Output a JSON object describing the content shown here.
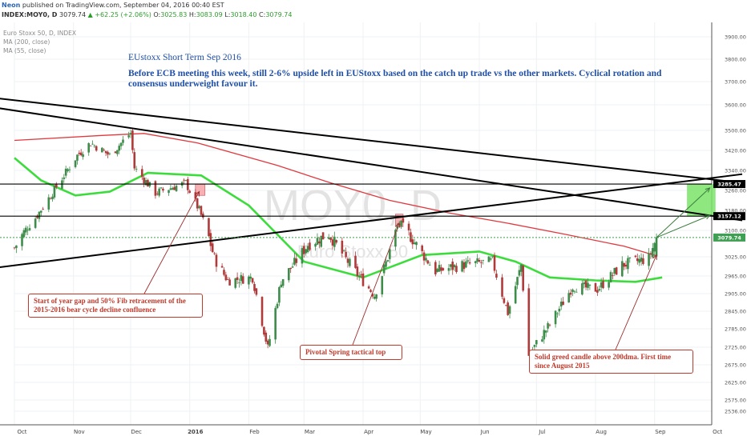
{
  "header": {
    "publisher": "Neon",
    "published_text": " published on TradingView.com, September 04, 2016 00:40 EST",
    "symbol": "INDEX:MOY0, D",
    "last": "3079.74",
    "change": "▲ +62.25 (+2.06%)",
    "o_label": "O:",
    "o_value": "3025.83",
    "h_label": "H:",
    "h_value": "3083.09",
    "l_label": "L:",
    "l_value": "3018.40",
    "c_label": "C:",
    "c_value": "3079.74"
  },
  "legend": {
    "instrument": "Euro Stoxx 50, D, INDEX",
    "ma200": "MA (200, close)",
    "ma55": "MA (55, close)"
  },
  "watermark": {
    "symbol": "MOY0, D",
    "name": "Euro Stoxx 50"
  },
  "annotations": {
    "title": "EUstoxx Short Term Sep 2016",
    "body": "Before ECB meeting this week, still 2-6% upside left in EUStoxx based on the catch up trade vs the other markets. Cyclical rotation and consensus underweight favour it.",
    "callout_gap": "Start of year gap and 50% Fib retracement of the 2015-2016 bear cycle decline confluence",
    "callout_pivot": "Pivotal Spring tactical top",
    "callout_candle": "Solid greed candle above 200dma. First time since August 2015"
  },
  "chart_data": {
    "type": "candlestick",
    "title": "Euro Stoxx 50, D, INDEX",
    "x_tick_labels": [
      "Oct",
      "Nov",
      "Dec",
      "2016",
      "Feb",
      "Mar",
      "Apr",
      "May",
      "Jun",
      "Jul",
      "Aug",
      "Sep",
      "Oct"
    ],
    "y_tick_labels": [
      "3900.00",
      "3800.00",
      "3700.00",
      "3600.00",
      "3500.00",
      "3420.00",
      "3340.00",
      "3260.00",
      "3180.00",
      "3100.00",
      "3025.00",
      "2965.00",
      "2905.00",
      "2845.00",
      "2785.00",
      "2725.00",
      "2675.00",
      "2625.00",
      "2575.00",
      "2536.00"
    ],
    "price_labels": [
      {
        "value": 3285.47,
        "text": "3285.47",
        "color": "#000000"
      },
      {
        "value": 3157.12,
        "text": "3157.12",
        "color": "#000000"
      },
      {
        "value": 3079.74,
        "text": "3079.74",
        "color": "#3f9f52"
      }
    ],
    "anchors": [
      {
        "date": "2015-10-01",
        "close": 3050
      },
      {
        "date": "2015-10-12",
        "close": 3150
      },
      {
        "date": "2015-10-20",
        "close": 3240
      },
      {
        "date": "2015-11-03",
        "close": 3400
      },
      {
        "date": "2015-11-10",
        "close": 3450
      },
      {
        "date": "2015-11-20",
        "close": 3400
      },
      {
        "date": "2015-12-01",
        "close": 3490
      },
      {
        "date": "2015-12-03",
        "close": 3350
      },
      {
        "date": "2015-12-14",
        "close": 3250
      },
      {
        "date": "2015-12-30",
        "close": 3290
      },
      {
        "date": "2016-01-06",
        "close": 3180
      },
      {
        "date": "2016-01-14",
        "close": 3020
      },
      {
        "date": "2016-01-21",
        "close": 2950
      },
      {
        "date": "2016-02-03",
        "close": 2960
      },
      {
        "date": "2016-02-11",
        "close": 2720
      },
      {
        "date": "2016-02-18",
        "close": 2950
      },
      {
        "date": "2016-03-03",
        "close": 3060
      },
      {
        "date": "2016-03-14",
        "close": 3090
      },
      {
        "date": "2016-03-24",
        "close": 3010
      },
      {
        "date": "2016-04-07",
        "close": 2900
      },
      {
        "date": "2016-04-20",
        "close": 3130
      },
      {
        "date": "2016-04-25",
        "close": 3090
      },
      {
        "date": "2016-05-09",
        "close": 2980
      },
      {
        "date": "2016-05-24",
        "close": 3000
      },
      {
        "date": "2016-06-08",
        "close": 3010
      },
      {
        "date": "2016-06-16",
        "close": 2840
      },
      {
        "date": "2016-06-23",
        "close": 3000
      },
      {
        "date": "2016-06-27",
        "close": 2700
      },
      {
        "date": "2016-07-08",
        "close": 2800
      },
      {
        "date": "2016-07-20",
        "close": 2930
      },
      {
        "date": "2016-08-02",
        "close": 2920
      },
      {
        "date": "2016-08-15",
        "close": 3000
      },
      {
        "date": "2016-08-29",
        "close": 3020
      },
      {
        "date": "2016-09-02",
        "close": 3079.74
      }
    ],
    "ma200_points": [
      {
        "date": "2015-10-01",
        "value": 3460
      },
      {
        "date": "2015-11-16",
        "value": 3480
      },
      {
        "date": "2015-12-08",
        "value": 3488
      },
      {
        "date": "2016-01-05",
        "value": 3450
      },
      {
        "date": "2016-02-16",
        "value": 3360
      },
      {
        "date": "2016-03-15",
        "value": 3290
      },
      {
        "date": "2016-04-15",
        "value": 3220
      },
      {
        "date": "2016-05-16",
        "value": 3170
      },
      {
        "date": "2016-06-15",
        "value": 3130
      },
      {
        "date": "2016-07-15",
        "value": 3090
      },
      {
        "date": "2016-08-16",
        "value": 3055
      },
      {
        "date": "2016-09-02",
        "value": 3028
      }
    ],
    "ma55_points": [
      {
        "date": "2015-10-01",
        "value": 3390
      },
      {
        "date": "2015-10-15",
        "value": 3300
      },
      {
        "date": "2015-11-02",
        "value": 3240
      },
      {
        "date": "2015-11-20",
        "value": 3255
      },
      {
        "date": "2015-12-10",
        "value": 3330
      },
      {
        "date": "2016-01-07",
        "value": 3320
      },
      {
        "date": "2016-02-01",
        "value": 3200
      },
      {
        "date": "2016-03-01",
        "value": 3010
      },
      {
        "date": "2016-04-01",
        "value": 2960
      },
      {
        "date": "2016-05-02",
        "value": 3030
      },
      {
        "date": "2016-06-01",
        "value": 3040
      },
      {
        "date": "2016-06-20",
        "value": 3010
      },
      {
        "date": "2016-07-08",
        "value": 2960
      },
      {
        "date": "2016-08-01",
        "value": 2950
      },
      {
        "date": "2016-08-22",
        "value": 2945
      },
      {
        "date": "2016-09-05",
        "value": 2960
      }
    ],
    "horizontal_lines": [
      3285.47,
      3157.12
    ],
    "trend_lines": [
      {
        "from": {
          "date": "2015-09-20",
          "value": 3630
        },
        "to": {
          "date": "2016-10-17",
          "value": 3290
        }
      },
      {
        "from": {
          "date": "2015-09-20",
          "value": 3590
        },
        "to": {
          "date": "2016-10-17",
          "value": 3140
        }
      },
      {
        "from": {
          "date": "2015-09-20",
          "value": 2990
        },
        "to": {
          "date": "2016-10-17",
          "value": 3325
        }
      }
    ],
    "zones": [
      {
        "from": {
          "date": "2016-01-04",
          "value": 3285
        },
        "to": {
          "date": "2016-01-09",
          "value": 3240
        },
        "color": "#f5a3a8"
      },
      {
        "from": {
          "date": "2016-04-18",
          "value": 3165
        },
        "to": {
          "date": "2016-04-22",
          "value": 3115
        },
        "color": "#f5a3a8"
      },
      {
        "from": {
          "date": "2016-09-18",
          "value": 3285.47
        },
        "to": {
          "date": "2016-10-03",
          "value": 3157.12
        },
        "color": "#7be36a"
      }
    ],
    "projection_arrows": [
      {
        "from": {
          "date": "2016-09-02",
          "value": 3079.74
        },
        "to": {
          "date": "2016-09-30",
          "value": 3270
        }
      },
      {
        "from": {
          "date": "2016-09-02",
          "value": 3079.74
        },
        "to": {
          "date": "2016-09-30",
          "value": 3160
        }
      }
    ],
    "annotation_arrows": [
      {
        "target": {
          "date": "2016-01-06",
          "value": 3255
        }
      },
      {
        "target": {
          "date": "2016-04-20",
          "value": 3130
        }
      },
      {
        "target": {
          "date": "2016-09-02",
          "value": 3030
        }
      }
    ],
    "colors": {
      "up": "#3d8c4a",
      "down": "#b03a3a",
      "ma200": "#e0393e",
      "ma55": "#3ddc3d",
      "last_price_line": "#3f9f52",
      "callout_border": "#c0392b",
      "annotation_text": "#1e4fa8"
    },
    "grid": true,
    "y_axis_side": "right"
  }
}
